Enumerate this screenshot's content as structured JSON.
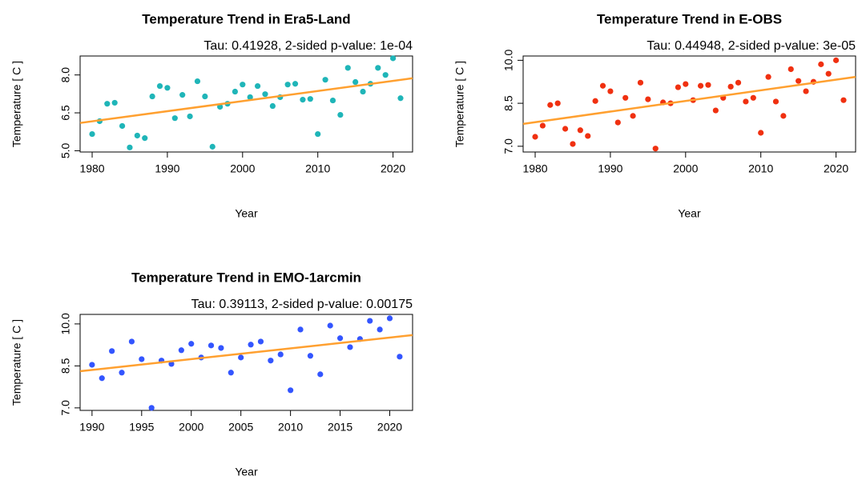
{
  "chart_data": [
    {
      "type": "scatter",
      "title": "Temperature Trend in Era5-Land",
      "subtitle": "Tau: 0.41928, 2-sided p-value: 1e-04",
      "xlabel": "Year",
      "ylabel": "Temperature [ C ]",
      "color": "#1fb5b8",
      "x": [
        1980,
        1981,
        1982,
        1983,
        1984,
        1985,
        1986,
        1987,
        1988,
        1989,
        1990,
        1991,
        1992,
        1993,
        1994,
        1995,
        1996,
        1997,
        1998,
        1999,
        2000,
        2001,
        2002,
        2003,
        2004,
        2005,
        2006,
        2007,
        2008,
        2009,
        2010,
        2011,
        2012,
        2013,
        2014,
        2015,
        2016,
        2017,
        2018,
        2019,
        2020,
        2021
      ],
      "values": [
        5.66,
        6.17,
        6.86,
        6.9,
        5.98,
        5.13,
        5.6,
        5.5,
        7.15,
        7.56,
        7.49,
        6.29,
        7.21,
        6.36,
        7.75,
        7.15,
        5.16,
        6.74,
        6.86,
        7.34,
        7.62,
        7.12,
        7.56,
        7.24,
        6.77,
        7.12,
        7.62,
        7.65,
        7.02,
        7.05,
        5.66,
        7.81,
        6.99,
        6.42,
        8.28,
        7.72,
        7.34,
        7.65,
        8.28,
        8.0,
        8.66,
        7.08
      ],
      "trend_line": {
        "color": "#ffa030",
        "x": [
          1978.4,
          2022.6
        ],
        "values": [
          6.1,
          7.87
        ]
      },
      "xlim": [
        1978.4,
        2022.6
      ],
      "ylim": [
        4.95,
        8.75
      ],
      "xticks": [
        1980,
        1990,
        2000,
        2010,
        2020
      ],
      "yticks": [
        {
          "value": 5,
          "label": "5.0"
        },
        6.5,
        {
          "value": 8,
          "label": "8.0"
        }
      ]
    },
    {
      "type": "scatter",
      "title": "Temperature Trend in E-OBS",
      "subtitle": "Tau: 0.44948, 2-sided p-value: 3e-05",
      "xlabel": "Year",
      "ylabel": "Temperature [ C ]",
      "color": "#f03010",
      "x": [
        1980,
        1981,
        1982,
        1983,
        1984,
        1985,
        1986,
        1987,
        1988,
        1989,
        1990,
        1991,
        1992,
        1993,
        1994,
        1995,
        1996,
        1997,
        1998,
        1999,
        2000,
        2001,
        2002,
        2003,
        2004,
        2005,
        2006,
        2007,
        2008,
        2009,
        2010,
        2011,
        2012,
        2013,
        2014,
        2015,
        2016,
        2017,
        2018,
        2019,
        2020,
        2021
      ],
      "values": [
        7.33,
        7.72,
        8.44,
        8.5,
        7.61,
        7.08,
        7.56,
        7.36,
        8.58,
        9.11,
        8.92,
        7.83,
        8.69,
        8.06,
        9.22,
        8.64,
        6.92,
        8.53,
        8.5,
        9.06,
        9.17,
        8.61,
        9.11,
        9.14,
        8.25,
        8.69,
        9.08,
        9.22,
        8.56,
        8.69,
        7.47,
        9.42,
        8.56,
        8.06,
        9.69,
        9.28,
        8.92,
        9.25,
        9.86,
        9.53,
        10.0,
        8.61
      ],
      "trend_line": {
        "color": "#ffa030",
        "x": [
          1978.4,
          2022.6
        ],
        "values": [
          7.78,
          9.42
        ]
      },
      "xlim": [
        1978.4,
        2022.6
      ],
      "ylim": [
        6.8,
        10.15
      ],
      "xticks": [
        1980,
        1990,
        2000,
        2010,
        2020
      ],
      "yticks": [
        {
          "value": 7,
          "label": "7.0"
        },
        8.5,
        {
          "value": 10,
          "label": "10.0"
        }
      ]
    },
    {
      "type": "scatter",
      "title": "Temperature Trend in EMO-1arcmin",
      "subtitle": "Tau: 0.39113, 2-sided p-value: 0.00175",
      "xlabel": "Year",
      "ylabel": "Temperature [ C ]",
      "color": "#3355ff",
      "x": [
        1990,
        1991,
        1992,
        1993,
        1994,
        1995,
        1996,
        1997,
        1998,
        1999,
        2000,
        2001,
        2002,
        2003,
        2004,
        2005,
        2006,
        2007,
        2008,
        2009,
        2010,
        2011,
        2012,
        2013,
        2014,
        2015,
        2016,
        2017,
        2018,
        2019,
        2020,
        2021
      ],
      "values": [
        8.54,
        8.06,
        9.03,
        8.26,
        9.37,
        8.74,
        7.0,
        8.69,
        8.57,
        9.06,
        9.29,
        8.8,
        9.23,
        9.14,
        8.26,
        8.8,
        9.26,
        9.37,
        8.69,
        8.91,
        7.63,
        9.8,
        8.86,
        8.2,
        9.94,
        9.49,
        9.17,
        9.46,
        10.11,
        9.8,
        10.2,
        8.83
      ],
      "trend_line": {
        "color": "#ffa030",
        "x": [
          1988.8,
          2022.3
        ],
        "values": [
          8.31,
          9.6
        ]
      },
      "xlim": [
        1988.8,
        2022.3
      ],
      "ylim": [
        6.91,
        10.34
      ],
      "xticks": [
        1990,
        1995,
        2000,
        2005,
        2010,
        2015,
        2020
      ],
      "yticks": [
        {
          "value": 7,
          "label": "7.0"
        },
        8.5,
        {
          "value": 10,
          "label": "10.0"
        }
      ]
    }
  ]
}
